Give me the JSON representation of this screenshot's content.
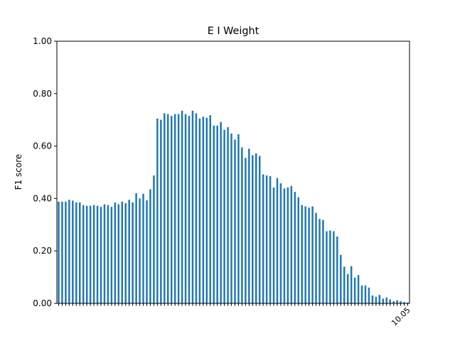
{
  "chart_data": {
    "type": "bar",
    "title": "E I Weight",
    "xlabel": "",
    "ylabel": "F1 score",
    "ylim": [
      0.0,
      1.0
    ],
    "yticks": [
      "0.00",
      "0.20",
      "0.40",
      "0.60",
      "0.80",
      "1.00"
    ],
    "last_category_label": "10.05",
    "grid": false,
    "legend": "none",
    "bar_color": "#1f77b4",
    "values": [
      0.388,
      0.388,
      0.388,
      0.395,
      0.392,
      0.385,
      0.385,
      0.375,
      0.372,
      0.372,
      0.375,
      0.372,
      0.368,
      0.378,
      0.375,
      0.368,
      0.385,
      0.378,
      0.388,
      0.382,
      0.395,
      0.385,
      0.42,
      0.4,
      0.418,
      0.393,
      0.435,
      0.488,
      0.705,
      0.7,
      0.725,
      0.722,
      0.715,
      0.722,
      0.722,
      0.735,
      0.722,
      0.715,
      0.735,
      0.725,
      0.705,
      0.712,
      0.708,
      0.718,
      0.678,
      0.678,
      0.692,
      0.662,
      0.672,
      0.648,
      0.625,
      0.645,
      0.595,
      0.555,
      0.59,
      0.565,
      0.572,
      0.562,
      0.492,
      0.488,
      0.485,
      0.442,
      0.478,
      0.458,
      0.438,
      0.442,
      0.448,
      0.425,
      0.405,
      0.375,
      0.37,
      0.365,
      0.37,
      0.345,
      0.322,
      0.318,
      0.275,
      0.278,
      0.275,
      0.255,
      0.185,
      0.14,
      0.112,
      0.142,
      0.098,
      0.108,
      0.068,
      0.068,
      0.06,
      0.03,
      0.025,
      0.032,
      0.018,
      0.022,
      0.015,
      0.008,
      0.012,
      0.008,
      0.005,
      0.003
    ]
  }
}
